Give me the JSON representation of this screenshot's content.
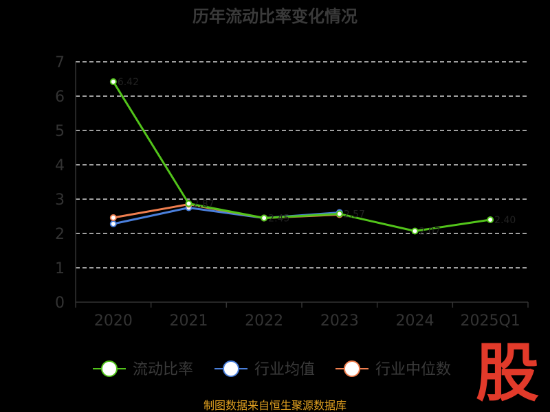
{
  "chart_data": {
    "type": "line",
    "title": "历年流动比率变化情况",
    "categories": [
      "2020",
      "2021",
      "2022",
      "2023",
      "2024",
      "2025Q1"
    ],
    "y_ticks": [
      "0",
      "1",
      "2",
      "3",
      "4",
      "5",
      "6",
      "7"
    ],
    "ylim": [
      0,
      7
    ],
    "grid": true,
    "legend_position": "bottom",
    "series": [
      {
        "name": "流动比率",
        "color": "#52c41a",
        "values": [
          6.42,
          2.87,
          2.45,
          2.57,
          2.07,
          2.4
        ]
      },
      {
        "name": "行业均值",
        "color": "#4a7fdb",
        "values": [
          2.28,
          2.75,
          2.45,
          2.61,
          null,
          null
        ]
      },
      {
        "name": "行业中位数",
        "color": "#f07e4f",
        "values": [
          2.46,
          2.85,
          2.45,
          2.55,
          null,
          null
        ]
      }
    ],
    "data_labels": [
      "6.42",
      "2.87",
      "2.45",
      "2.57",
      "2.07",
      "2.40"
    ]
  },
  "footer": {
    "source": "制图数据来自恒生聚源数据库"
  },
  "logo": {
    "text": "股",
    "color": "#e23a2a"
  }
}
